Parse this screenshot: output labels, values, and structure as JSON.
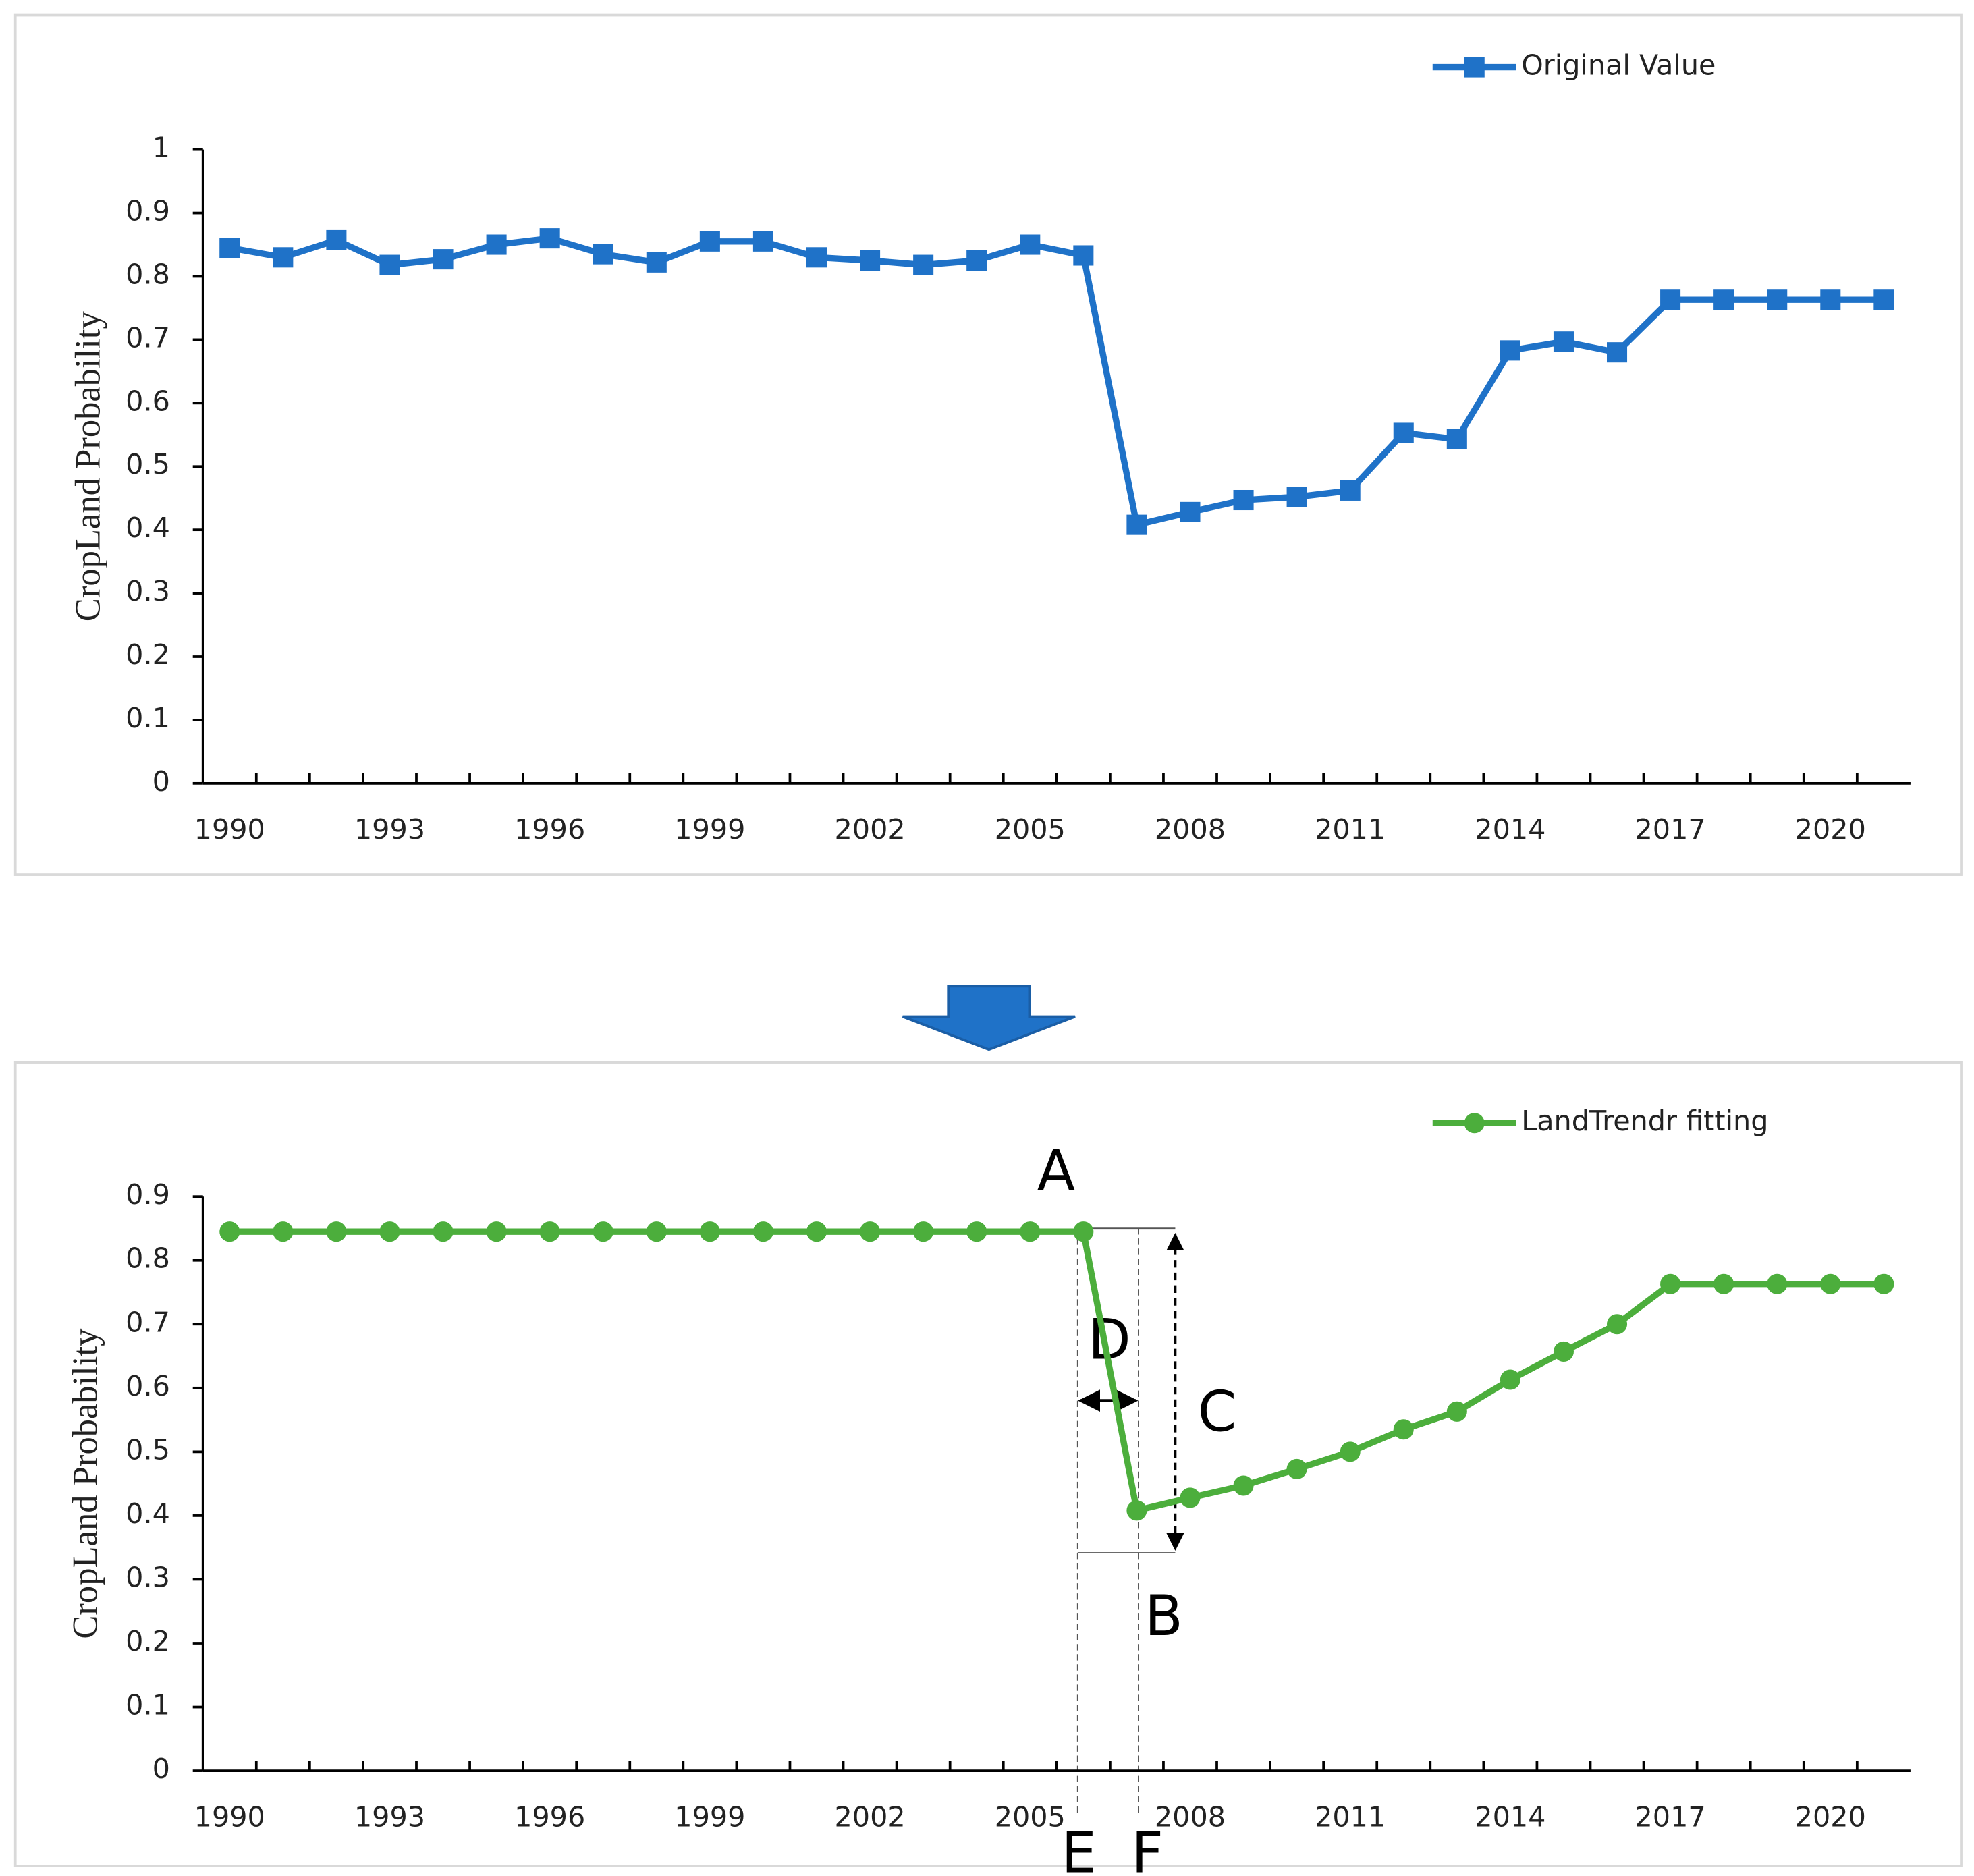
{
  "chart_data": [
    {
      "type": "line",
      "y_label": "CropLand  Probability",
      "x": [
        1990,
        1991,
        1992,
        1993,
        1994,
        1995,
        1996,
        1997,
        1998,
        1999,
        2000,
        2001,
        2002,
        2003,
        2004,
        2005,
        2006,
        2007,
        2008,
        2009,
        2010,
        2011,
        2012,
        2013,
        2014,
        2015,
        2016,
        2017,
        2018,
        2019,
        2020,
        2021
      ],
      "series": [
        {
          "name": "Original Value",
          "color": "#1f72c8",
          "marker": "square",
          "values": [
            0.845,
            0.83,
            0.857,
            0.818,
            0.827,
            0.85,
            0.86,
            0.835,
            0.822,
            0.855,
            0.855,
            0.83,
            0.825,
            0.818,
            0.825,
            0.85,
            0.833,
            0.408,
            0.428,
            0.447,
            0.452,
            0.462,
            0.553,
            0.543,
            0.683,
            0.697,
            0.68,
            0.763,
            0.763,
            0.763,
            0.763,
            0.763
          ]
        }
      ],
      "xlim": [
        1989.5,
        2021.5
      ],
      "xticks": [
        1990,
        1993,
        1996,
        1999,
        2002,
        2005,
        2008,
        2011,
        2014,
        2017,
        2020
      ],
      "ylim": [
        0,
        1
      ],
      "yticks": [
        0,
        0.1,
        0.2,
        0.3,
        0.4,
        0.5,
        0.6,
        0.7,
        0.8,
        0.9,
        1
      ],
      "legend": "top-right"
    },
    {
      "type": "line",
      "y_label": "CropLand  Probability",
      "x": [
        1990,
        1991,
        1992,
        1993,
        1994,
        1995,
        1996,
        1997,
        1998,
        1999,
        2000,
        2001,
        2002,
        2003,
        2004,
        2005,
        2006,
        2007,
        2008,
        2009,
        2010,
        2011,
        2012,
        2013,
        2014,
        2015,
        2016,
        2017,
        2018,
        2019,
        2020,
        2021
      ],
      "series": [
        {
          "name": "LandTrendr fitting",
          "color": "#4cae3c",
          "marker": "circle",
          "values": [
            0.845,
            0.845,
            0.845,
            0.845,
            0.845,
            0.845,
            0.845,
            0.845,
            0.845,
            0.845,
            0.845,
            0.845,
            0.845,
            0.845,
            0.845,
            0.845,
            0.845,
            0.408,
            0.428,
            0.447,
            0.473,
            0.5,
            0.535,
            0.563,
            0.613,
            0.657,
            0.7,
            0.763,
            0.763,
            0.763,
            0.763,
            0.763
          ]
        }
      ],
      "xlim": [
        1989.5,
        2021.5
      ],
      "xticks": [
        1990,
        1993,
        1996,
        1999,
        2002,
        2005,
        2008,
        2011,
        2014,
        2017,
        2020
      ],
      "ylim": [
        0,
        0.9
      ],
      "yticks": [
        0,
        0.1,
        0.2,
        0.3,
        0.4,
        0.5,
        0.6,
        0.7,
        0.8,
        0.9
      ],
      "legend": "top-right",
      "annotations": [
        "A",
        "B",
        "C",
        "D",
        "E",
        "F"
      ]
    }
  ]
}
